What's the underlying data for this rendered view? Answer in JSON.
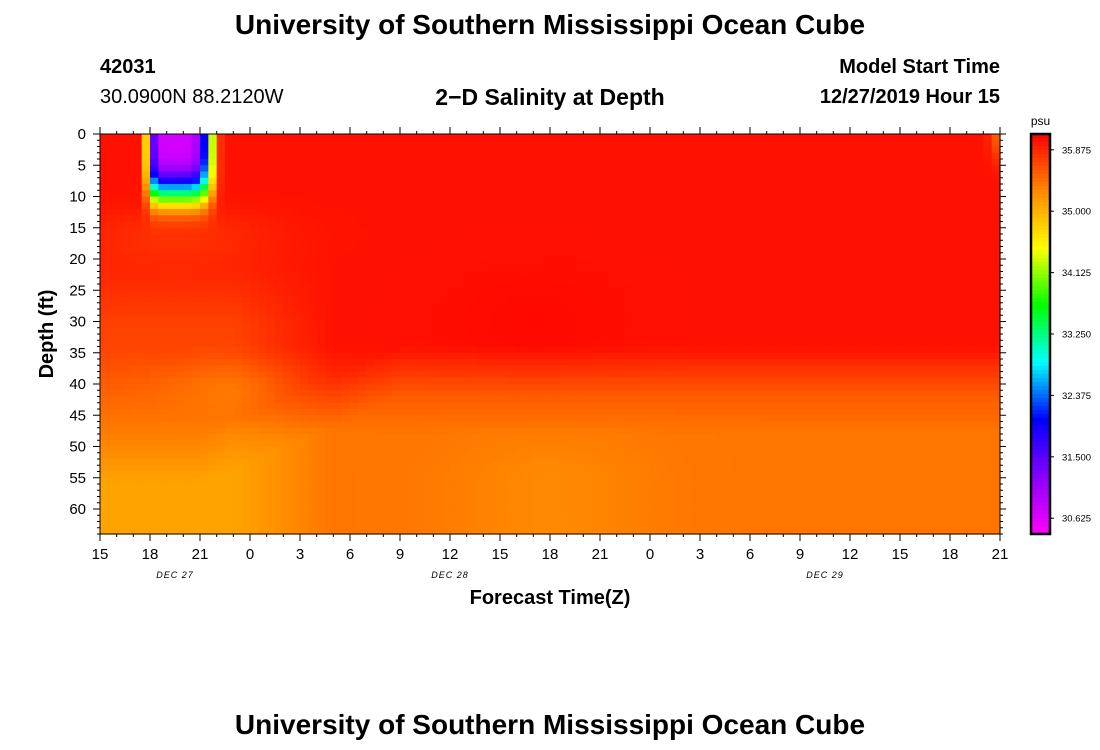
{
  "header": {
    "title": "University of Southern Mississippi Ocean Cube",
    "station_id": "42031",
    "location": "30.0900N 88.2120W",
    "start_label": "Model Start Time",
    "start_value": "12/27/2019 Hour 15"
  },
  "footer": {
    "title": "University of Southern Mississippi Ocean Cube"
  },
  "chart_data": {
    "type": "heatmap",
    "title": "2−D Salinity at Depth",
    "xlabel": "Forecast Time(Z)",
    "ylabel": "Depth (ft)",
    "x_tick_labels": [
      "15",
      "18",
      "21",
      "0",
      "3",
      "6",
      "9",
      "12",
      "15",
      "18",
      "21",
      "0",
      "3",
      "6",
      "9",
      "12",
      "15",
      "18",
      "21"
    ],
    "date_labels": [
      {
        "text": "DEC 27",
        "at_tick": 1.5
      },
      {
        "text": "DEC 28",
        "at_tick": 7
      },
      {
        "text": "DEC 29",
        "at_tick": 14.5
      }
    ],
    "xlim_hours": [
      0,
      54
    ],
    "y_ticks": [
      0,
      5,
      10,
      15,
      20,
      25,
      30,
      35,
      40,
      45,
      50,
      55,
      60
    ],
    "ylim": [
      0,
      64
    ],
    "colorbar": {
      "unit": "psu",
      "min": 30.4,
      "max": 36.1,
      "tick_values": [
        35.875,
        35.0,
        34.125,
        33.25,
        32.375,
        31.5,
        30.625
      ],
      "tick_labels": [
        "35.875",
        "35.000",
        "34.125",
        "33.250",
        "32.375",
        "31.500",
        "30.625"
      ],
      "colors": [
        "#ff00ff",
        "#8800ff",
        "#0000ff",
        "#00ffff",
        "#00ff00",
        "#ffff00",
        "#ff8800",
        "#ff0000"
      ]
    },
    "features": [
      {
        "desc": "fresh surface plume",
        "hour_center": 4.5,
        "depth_center": 0,
        "min_salinity": 30.7
      },
      {
        "desc": "saline core",
        "depth_range_ft": [
          15,
          35
        ],
        "salinity": 36.0
      },
      {
        "desc": "deep layer",
        "depth_range_ft": [
          45,
          64
        ],
        "salinity": 35.65
      }
    ]
  }
}
